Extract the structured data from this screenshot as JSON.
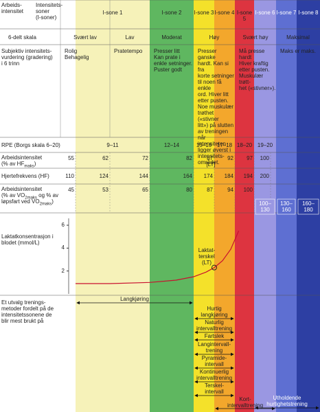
{
  "header": {
    "intensity_label": "Arbeids-\nintensitet",
    "zones_label": "Intensitets-\nsoner\n(I-soner)",
    "zones": [
      "I-sone 1",
      "I-sone 2",
      "I-sone 3",
      "I-sone 4",
      "I-sone 5",
      "I-sone 6",
      "I-sone 7",
      "I-sone 8"
    ],
    "colors": [
      "#f6f2b9",
      "#5fb760",
      "#f4e12a",
      "#f3a72c",
      "#dd3440",
      "#9a97e2",
      "#5e6fd2",
      "#2d3fa3"
    ]
  },
  "scale": {
    "label": "6-delt skala",
    "levels": [
      "Svært lav",
      "Lav",
      "Moderat",
      "Høy",
      "Svært høy",
      "Maksimal"
    ]
  },
  "subjective": {
    "label": "Subjektiv intensitets-\nvurdering (gradering)\ni 6 trinn",
    "descriptions": [
      "Rolig\nBehagelig",
      "Pratetempo",
      "Presser litt\nKan prate i\nenkle setninger.\nPuster godt",
      "Presser ganske\nhardt. Kan si fra\nkorte setninger\ntil noen få enkle\nord. Hiver litt\netter pusten.\nNoe muskulær\ntrøthet («stivner\nlitt») på slutten\nav treningen når\nintensiteten\nligger øverst i\nintensitets-\nområdet.",
      "Må presse hardt\nHiver kraftig\netter pusten.\nMuskulær trøtt-\nhet («stivner»).",
      "Maks er maks."
    ]
  },
  "rpe": {
    "label": "RPE (Borgs skala 6–20)",
    "values": [
      "9–11",
      "12–14",
      "15–16",
      "17–18",
      "18–20",
      "19–20"
    ]
  },
  "hr_percent": {
    "label": [
      "Arbeidsintensitet\n(% av HF",
      "maks",
      ")"
    ],
    "values": [
      55,
      62,
      72,
      82,
      87,
      92,
      97,
      100
    ],
    "lt_label": "[LT]"
  },
  "hr": {
    "label": "Hjertefrekvens (HF)",
    "values": [
      110,
      124,
      144,
      164,
      174,
      184,
      194,
      200
    ]
  },
  "vo2": {
    "label": [
      "Arbeidsintensitet\n(% av VO",
      "2maks",
      " og % av\nløpsfart ved VO",
      "2maks",
      ")"
    ],
    "values": [
      45,
      53,
      65,
      80,
      87,
      94,
      100
    ],
    "extra": [
      "100–\n130",
      "130–\n160",
      "160–\n180"
    ]
  },
  "lactate": {
    "label": "Laktatkonsentrasjon i\nblodet (mmol/L)",
    "yticks": [
      2,
      4,
      6
    ],
    "ylim": [
      0,
      6.6
    ],
    "x": [
      55,
      62,
      72,
      78,
      82,
      85,
      87,
      89,
      91,
      93
    ],
    "y": [
      0.9,
      0.9,
      1.0,
      1.2,
      1.5,
      1.9,
      2.3,
      2.9,
      3.9,
      5.5
    ],
    "threshold": {
      "x": 87,
      "y": 2.3,
      "label": "Laktat-\nterskel\n(LT)"
    },
    "color": "#c8102e"
  },
  "methods": {
    "label": "Et utvalg trenings-\nmetoder fordelt på de\nintensitetssonene de\nblir mest brukt på",
    "items": [
      "Langkjøring",
      "Hurtig\nlangkjøring",
      "Naturlig\nintervalltrening",
      "Fartslek",
      "Langintervall-\ntrening",
      "Pyramide-\nintervall",
      "Kontinuerlig\nintervalltrening",
      "Terskel-\nintervall",
      "Kort-\nintervalltrening",
      "Utholdende\nhurtighetstrening"
    ]
  }
}
